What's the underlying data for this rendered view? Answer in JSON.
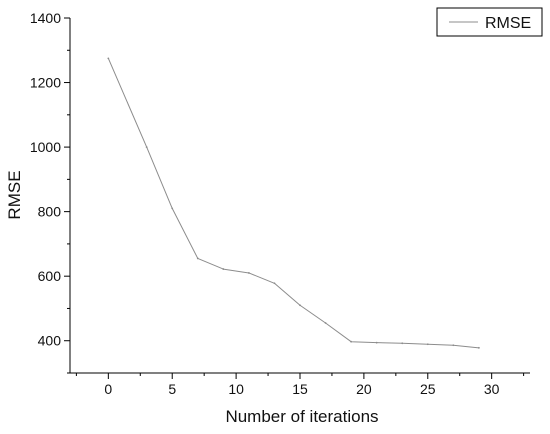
{
  "chart_data": {
    "type": "line",
    "title": "",
    "xlabel": "Number of iterations",
    "ylabel": "RMSE",
    "xlim": [
      -3,
      33
    ],
    "ylim": [
      300,
      1400
    ],
    "grid": false,
    "legend_position": "top-right",
    "x_major_ticks": [
      0,
      5,
      10,
      15,
      20,
      25,
      30
    ],
    "x_minor_ticks": [
      -2.5,
      2.5,
      7.5,
      12.5,
      17.5,
      22.5,
      27.5,
      32.5
    ],
    "y_major_ticks": [
      400,
      600,
      800,
      1000,
      1200,
      1400
    ],
    "y_minor_ticks": [
      300,
      500,
      700,
      900,
      1100,
      1300
    ],
    "x_tick_labels": [
      "0",
      "5",
      "10",
      "15",
      "20",
      "25",
      "30"
    ],
    "y_tick_labels": [
      "400",
      "600",
      "800",
      "1000",
      "1200",
      "1400"
    ],
    "series": [
      {
        "name": "RMSE",
        "color": "#8c8c8c",
        "x": [
          0,
          3,
          5,
          7,
          9,
          11,
          13,
          15,
          17,
          19,
          21,
          23,
          25,
          27,
          29
        ],
        "y": [
          1275,
          1000,
          810,
          655,
          622,
          610,
          578,
          510,
          455,
          397,
          394,
          392,
          389,
          386,
          378
        ]
      }
    ]
  }
}
